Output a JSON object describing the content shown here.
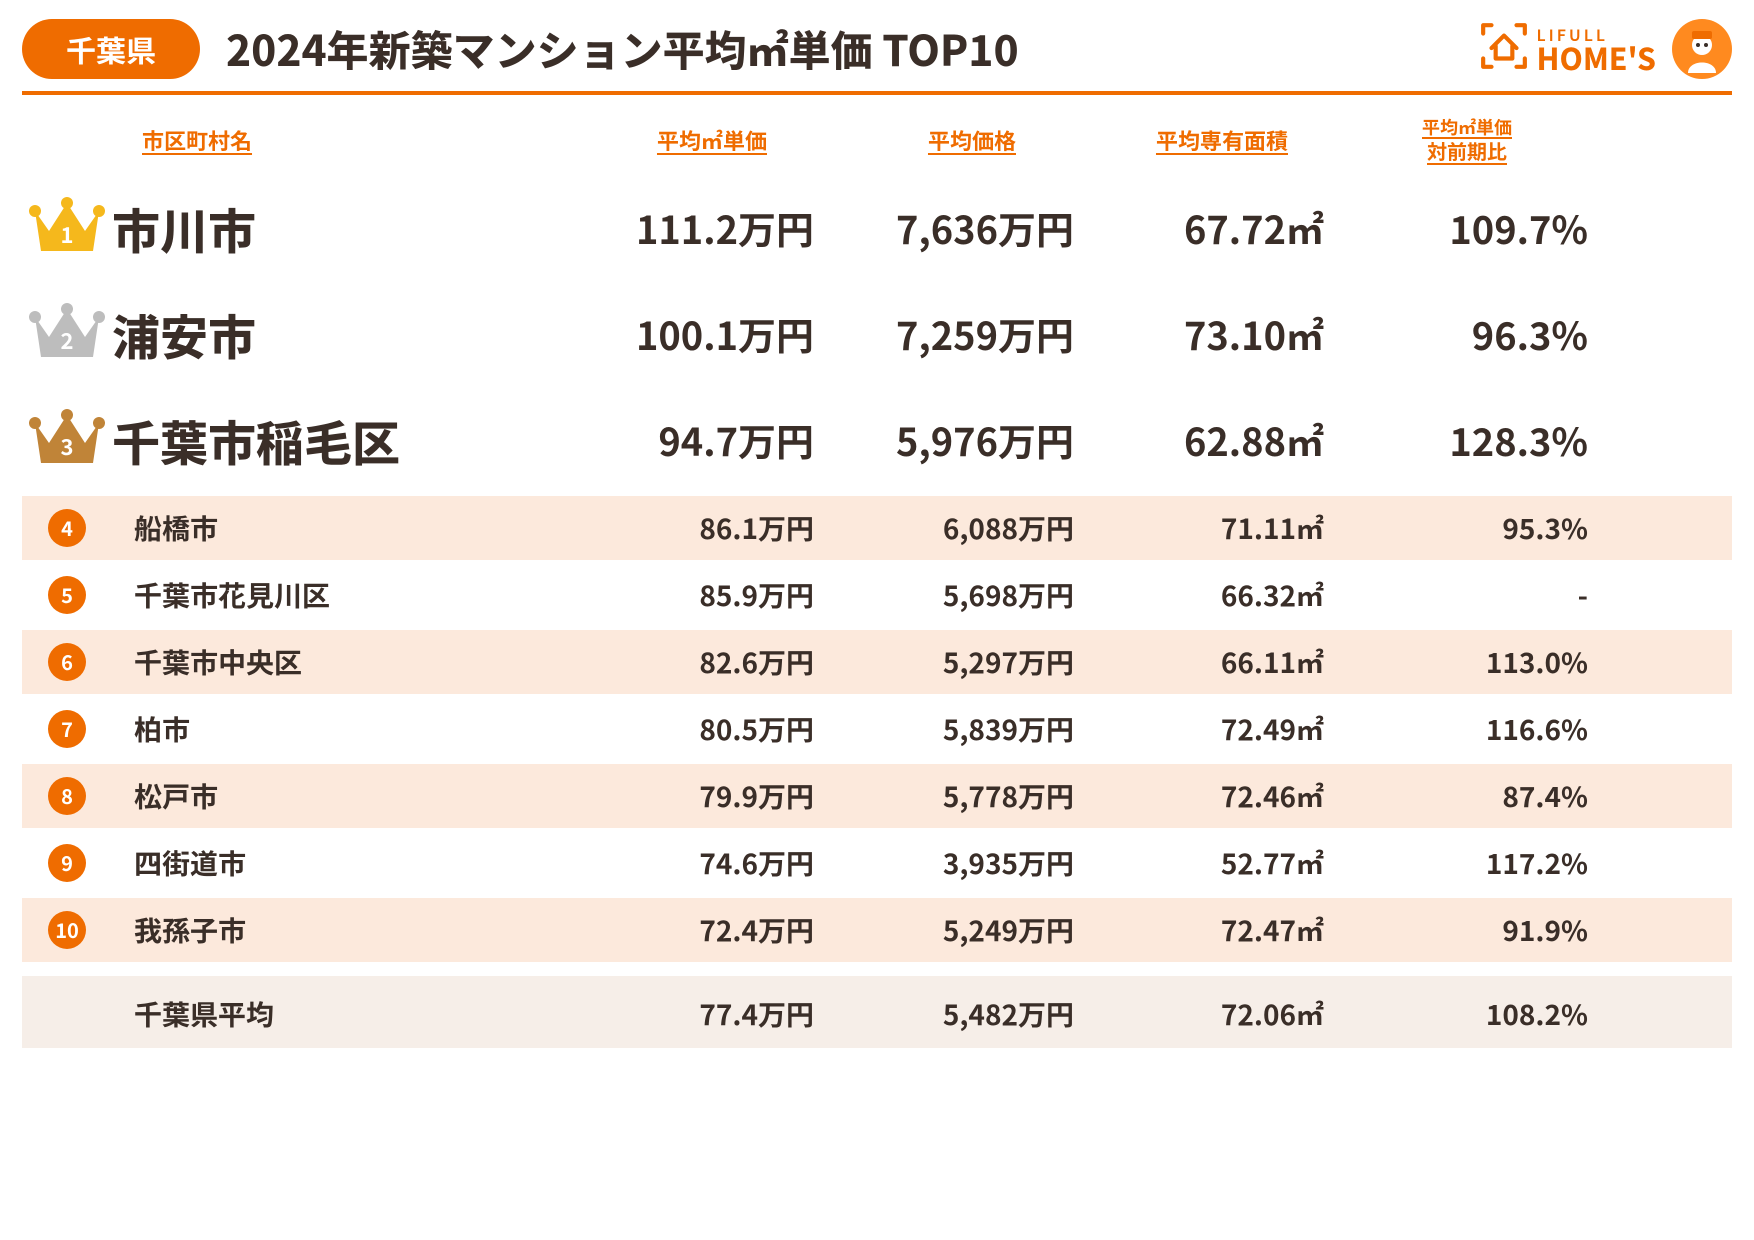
{
  "colors": {
    "accent": "#ef6c00",
    "text": "#3a2e28",
    "stripe": "#fce9dc",
    "avg_bg": "#f6eee8",
    "crown_gold": "#f5b81c",
    "crown_silver": "#bdbdbd",
    "crown_bronze": "#c08438"
  },
  "header": {
    "prefecture": "千葉県",
    "title": "2024年新築マンション平均㎡単価 TOP10",
    "brand_l1": "LIFULL",
    "brand_l2": "HOME'S"
  },
  "columns": {
    "name": "市区町村名",
    "price_per_m2": "平均㎡単価",
    "avg_price": "平均価格",
    "avg_area": "平均専有面積",
    "vs_l1": "平均㎡単価",
    "vs_l2": "対前期比"
  },
  "rows": [
    {
      "rank": 1,
      "name": "市川市",
      "ppm2": "111.2万円",
      "price": "7,636万円",
      "area": "67.72㎡",
      "pct": "109.7%"
    },
    {
      "rank": 2,
      "name": "浦安市",
      "ppm2": "100.1万円",
      "price": "7,259万円",
      "area": "73.10㎡",
      "pct": "96.3%"
    },
    {
      "rank": 3,
      "name": "千葉市稲毛区",
      "ppm2": "94.7万円",
      "price": "5,976万円",
      "area": "62.88㎡",
      "pct": "128.3%"
    },
    {
      "rank": 4,
      "name": "船橋市",
      "ppm2": "86.1万円",
      "price": "6,088万円",
      "area": "71.11㎡",
      "pct": "95.3%"
    },
    {
      "rank": 5,
      "name": "千葉市花見川区",
      "ppm2": "85.9万円",
      "price": "5,698万円",
      "area": "66.32㎡",
      "pct": "-"
    },
    {
      "rank": 6,
      "name": "千葉市中央区",
      "ppm2": "82.6万円",
      "price": "5,297万円",
      "area": "66.11㎡",
      "pct": "113.0%"
    },
    {
      "rank": 7,
      "name": "柏市",
      "ppm2": "80.5万円",
      "price": "5,839万円",
      "area": "72.49㎡",
      "pct": "116.6%"
    },
    {
      "rank": 8,
      "name": "松戸市",
      "ppm2": "79.9万円",
      "price": "5,778万円",
      "area": "72.46㎡",
      "pct": "87.4%"
    },
    {
      "rank": 9,
      "name": "四街道市",
      "ppm2": "74.6万円",
      "price": "3,935万円",
      "area": "52.77㎡",
      "pct": "117.2%"
    },
    {
      "rank": 10,
      "name": "我孫子市",
      "ppm2": "72.4万円",
      "price": "5,249万円",
      "area": "72.47㎡",
      "pct": "91.9%"
    }
  ],
  "average": {
    "name": "千葉県平均",
    "ppm2": "77.4万円",
    "price": "5,482万円",
    "area": "72.06㎡",
    "pct": "108.2%"
  }
}
